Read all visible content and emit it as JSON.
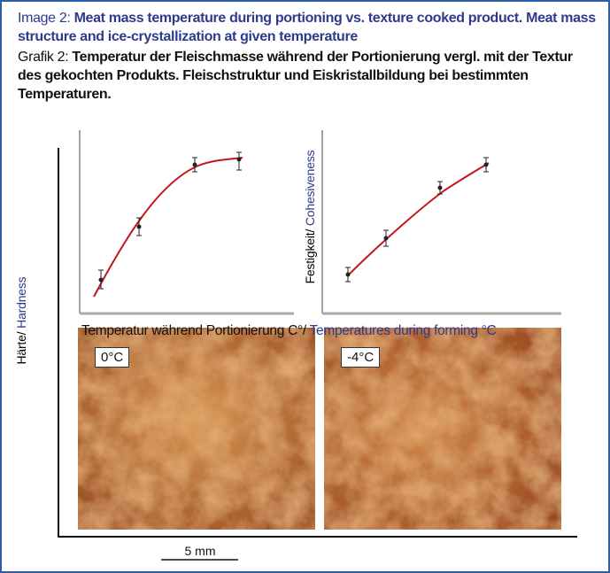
{
  "caption_en": {
    "label": "Image 2:",
    "text": "Meat mass temperature during portioning vs. texture cooked product. Meat mass structure and ice-crystallization at given temperature"
  },
  "caption_de": {
    "label": "Grafik 2:",
    "text": "Temperatur der Fleischmasse während der Portionierung vergl. mit der Textur des gekochten Produkts. Fleischstruktur und Eiskristallbildung bei bestimmten Temperaturen."
  },
  "y_axis_label": {
    "de": "Härte/",
    "en": "Hardness"
  },
  "chart_2_y_label": {
    "de": "Festigkeit/",
    "en": "Cohesiveness"
  },
  "x_axis_label": {
    "de": "Temperatur während Portionierung C°/",
    "en": "Temperatures during forming °C"
  },
  "images": [
    {
      "label": "0°C"
    },
    {
      "label": "-4°C"
    }
  ],
  "scale_bar": "5 mm"
}
